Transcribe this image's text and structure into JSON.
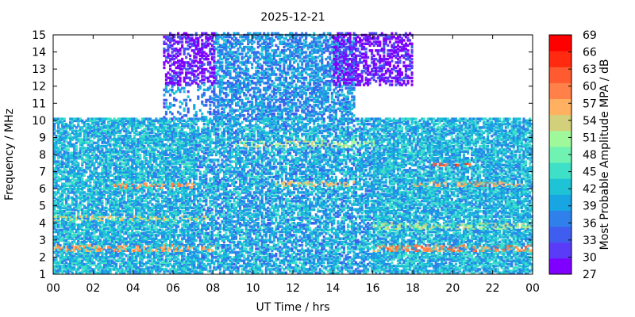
{
  "chart_data": {
    "type": "heatmap",
    "title": "2025-12-21",
    "xlabel": "UT Time / hrs",
    "ylabel": "Frequency / MHz",
    "colorbar_label": "Most Probable Amplitude MPA / dB",
    "xlim": [
      0,
      24
    ],
    "ylim": [
      1,
      15
    ],
    "x_ticks": [
      "00",
      "02",
      "04",
      "06",
      "08",
      "10",
      "12",
      "14",
      "16",
      "18",
      "20",
      "22",
      "00"
    ],
    "y_ticks": [
      "1",
      "2",
      "3",
      "4",
      "5",
      "6",
      "7",
      "8",
      "9",
      "10",
      "11",
      "12",
      "13",
      "14",
      "15"
    ],
    "colorbar": {
      "min": 27,
      "max": 69,
      "ticks": [
        "27",
        "30",
        "33",
        "36",
        "39",
        "42",
        "45",
        "48",
        "51",
        "54",
        "57",
        "60",
        "63",
        "66",
        "69"
      ],
      "colors": [
        "#7f00ff",
        "#5a3cf8",
        "#3f5ef0",
        "#2f80ea",
        "#17a6e2",
        "#1ec3d6",
        "#3ee0c8",
        "#6ff2b2",
        "#9ff99a",
        "#d2d07a",
        "#ffb060",
        "#ff8048",
        "#ff5a30",
        "#ff2a10",
        "#ff0000"
      ],
      "value_levels": [
        27,
        30,
        33,
        36,
        39,
        42,
        45,
        48,
        51,
        54,
        57,
        60,
        63,
        66,
        69
      ]
    },
    "cell_size": {
      "time_hours": 0.1,
      "frequency_mhz": 0.1
    },
    "regions": [
      {
        "time_start": 0.0,
        "time_end": 7.0,
        "freq_min": 1.0,
        "freq_max": 10.0,
        "base_dB": 42,
        "density": 0.72
      },
      {
        "time_start": 7.0,
        "time_end": 16.0,
        "freq_min": 1.0,
        "freq_max": 10.0,
        "base_dB": 41,
        "density": 0.62
      },
      {
        "time_start": 16.0,
        "time_end": 24.0,
        "freq_min": 1.0,
        "freq_max": 10.0,
        "base_dB": 42,
        "density": 0.72
      },
      {
        "time_start": 8.0,
        "time_end": 15.0,
        "freq_min": 10.0,
        "freq_max": 15.0,
        "base_dB": 39,
        "density": 0.55
      },
      {
        "time_start": 5.5,
        "time_end": 8.0,
        "freq_min": 12.0,
        "freq_max": 15.0,
        "base_dB": 29,
        "density": 0.45
      },
      {
        "time_start": 14.0,
        "time_end": 18.0,
        "freq_min": 12.0,
        "freq_max": 15.0,
        "base_dB": 29,
        "density": 0.45
      },
      {
        "time_start": 5.5,
        "time_end": 8.0,
        "freq_min": 10.0,
        "freq_max": 12.0,
        "base_dB": 38,
        "density": 0.2
      }
    ],
    "hotspots": [
      {
        "time_start": 0.0,
        "time_end": 8.0,
        "freq_min": 2.3,
        "freq_max": 2.7,
        "value_dB": 62
      },
      {
        "time_start": 0.0,
        "time_end": 8.0,
        "freq_min": 4.1,
        "freq_max": 4.4,
        "value_dB": 58
      },
      {
        "time_start": 3.0,
        "time_end": 7.0,
        "freq_min": 5.9,
        "freq_max": 6.2,
        "value_dB": 63
      },
      {
        "time_start": 9.0,
        "time_end": 16.0,
        "freq_min": 8.3,
        "freq_max": 8.7,
        "value_dB": 57
      },
      {
        "time_start": 11.0,
        "time_end": 15.0,
        "freq_min": 6.0,
        "freq_max": 6.3,
        "value_dB": 60
      },
      {
        "time_start": 19.0,
        "time_end": 21.0,
        "freq_min": 7.2,
        "freq_max": 7.4,
        "value_dB": 68
      },
      {
        "time_start": 18.0,
        "time_end": 23.5,
        "freq_min": 6.0,
        "freq_max": 6.3,
        "value_dB": 62
      },
      {
        "time_start": 16.0,
        "time_end": 24.0,
        "freq_min": 2.3,
        "freq_max": 2.7,
        "value_dB": 64
      },
      {
        "time_start": 16.0,
        "time_end": 24.0,
        "freq_min": 3.6,
        "freq_max": 4.0,
        "value_dB": 57
      }
    ],
    "grid": false,
    "legend": "colorbar-right"
  }
}
